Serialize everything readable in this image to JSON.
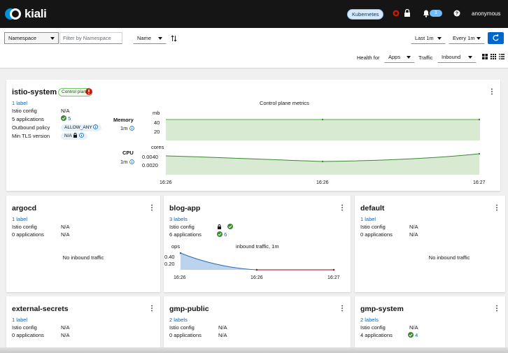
{
  "header": {
    "logo_text": "kiali",
    "cluster_badge": "Kubernetes",
    "notifications_count": "1",
    "user": "anonymous"
  },
  "toolbar": {
    "namespace_select": "Namespace",
    "filter_placeholder": "Filter by Namespace",
    "sort_select": "Name",
    "time_range": "Last 1m",
    "refresh_interval": "Every 1m",
    "health_for_label": "Health for",
    "health_for_value": "Apps",
    "traffic_label": "Traffic",
    "traffic_value": "Inbound"
  },
  "control_plane": {
    "name": "istio-system",
    "badge": "Control plane",
    "labels": "1 label",
    "istio_config_label": "Istio config",
    "istio_config_value": "N/A",
    "applications_label": "5 applications",
    "applications_value": "5",
    "outbound_policy_label": "Outbound policy",
    "outbound_policy_value": "ALLOW_ANY",
    "min_tls_label": "Min TLS version",
    "min_tls_value": "N/A",
    "metrics_title": "Control plane metrics",
    "memory_label": "Memory",
    "memory_window": "1m",
    "memory_unit": "mb",
    "memory_ticks": [
      "40",
      "20"
    ],
    "cpu_label": "CPU",
    "cpu_window": "1m",
    "cpu_unit": "cores",
    "cpu_ticks": [
      "0.0040",
      "0.0020"
    ],
    "time_ticks": [
      "16:26",
      "16:26",
      "16:27"
    ]
  },
  "namespaces": [
    {
      "name": "argocd",
      "labels": "1 label",
      "istio_config_label": "Istio config",
      "istio_config_value": "N/A",
      "applications_label": "0 applications",
      "applications_value": "N/A",
      "traffic": "No inbound traffic"
    },
    {
      "name": "blog-app",
      "labels": "3 labels",
      "istio_config_label": "Istio config",
      "applications_label": "6 applications",
      "applications_value": "6",
      "chart_unit": "ops",
      "chart_title": "inbound traffic, 1m",
      "chart_ticks": [
        "0.40",
        "0.20"
      ],
      "time_ticks": [
        "16:26",
        "16:26",
        "16:27"
      ]
    },
    {
      "name": "default",
      "labels": "1 label",
      "istio_config_label": "Istio config",
      "istio_config_value": "N/A",
      "applications_label": "0 applications",
      "applications_value": "N/A",
      "traffic": "No inbound traffic"
    },
    {
      "name": "external-secrets",
      "labels": "1 label",
      "istio_config_label": "Istio config",
      "istio_config_value": "N/A",
      "applications_label": "0 applications",
      "applications_value": "N/A"
    },
    {
      "name": "gmp-public",
      "labels": "2 labels",
      "istio_config_label": "Istio config",
      "istio_config_value": "N/A",
      "applications_label": "0 applications",
      "applications_value": "N/A"
    },
    {
      "name": "gmp-system",
      "labels": "2 labels",
      "istio_config_label": "Istio config",
      "istio_config_value": "N/A",
      "applications_label": "4 applications",
      "applications_value": "4"
    }
  ],
  "colors": {
    "header_bg": "#151515",
    "link": "#0066cc",
    "ok_green": "#3e8635",
    "memory_fill": "#d8ebd2",
    "traffic_fill": "#bcd3f0",
    "error_line": "#a30000"
  }
}
